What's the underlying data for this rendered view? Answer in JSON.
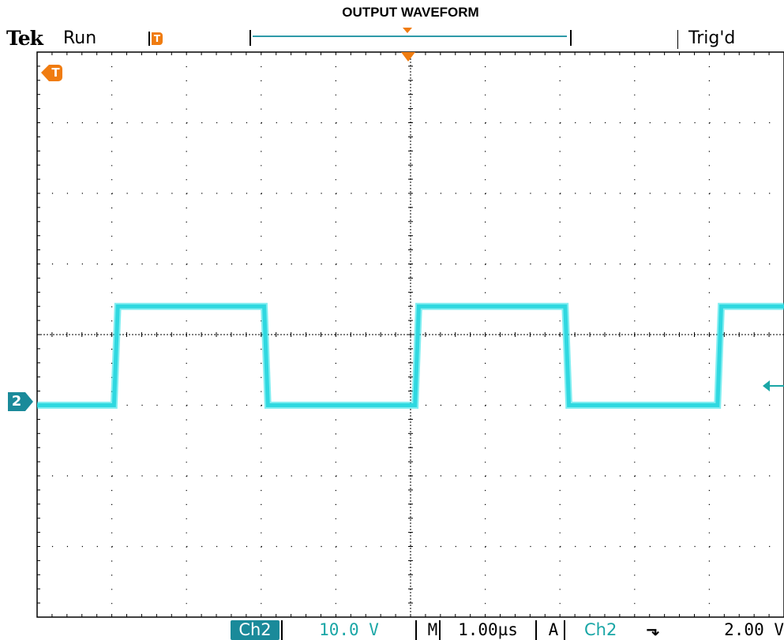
{
  "header": {
    "title": "OUTPUT WAVEFORM",
    "brand": "Tek",
    "acq_state": "Run",
    "trigger_status": "Trig'd",
    "trigger_marker": "T"
  },
  "channel_marker": "2",
  "status_bar": {
    "channel": "Ch2",
    "volts_per_div": "10.0 V",
    "timebase_label": "M",
    "time_per_div": "1.00µs",
    "trigger_mode": "A",
    "trigger_channel": "Ch2",
    "trigger_slope_icon": "falling-edge-icon",
    "trigger_level": "2.00 V"
  },
  "colors": {
    "trace": "#1ee0e6",
    "channel": "#1a8a9a",
    "trigger_marker": "#f07c10",
    "grid": "#000000"
  },
  "chart_data": {
    "type": "line",
    "title": "OUTPUT WAVEFORM",
    "xlabel": "",
    "ylabel": "",
    "grid": true,
    "x_divisions": 10,
    "y_divisions": 8,
    "x_units_per_div": 1.0,
    "y_units_per_div": 10.0,
    "x_unit": "µs",
    "y_unit": "V",
    "xlim": [
      0,
      10
    ],
    "ylim": [
      -30,
      50
    ],
    "series": [
      {
        "x": [
          0,
          1.03,
          1.08,
          3.04,
          3.09,
          5.06,
          5.11,
          7.07,
          7.12,
          9.11,
          9.16,
          10
        ],
        "y": [
          0,
          0,
          14,
          14,
          0,
          0,
          14,
          14,
          0,
          0,
          14,
          14
        ]
      }
    ]
  }
}
